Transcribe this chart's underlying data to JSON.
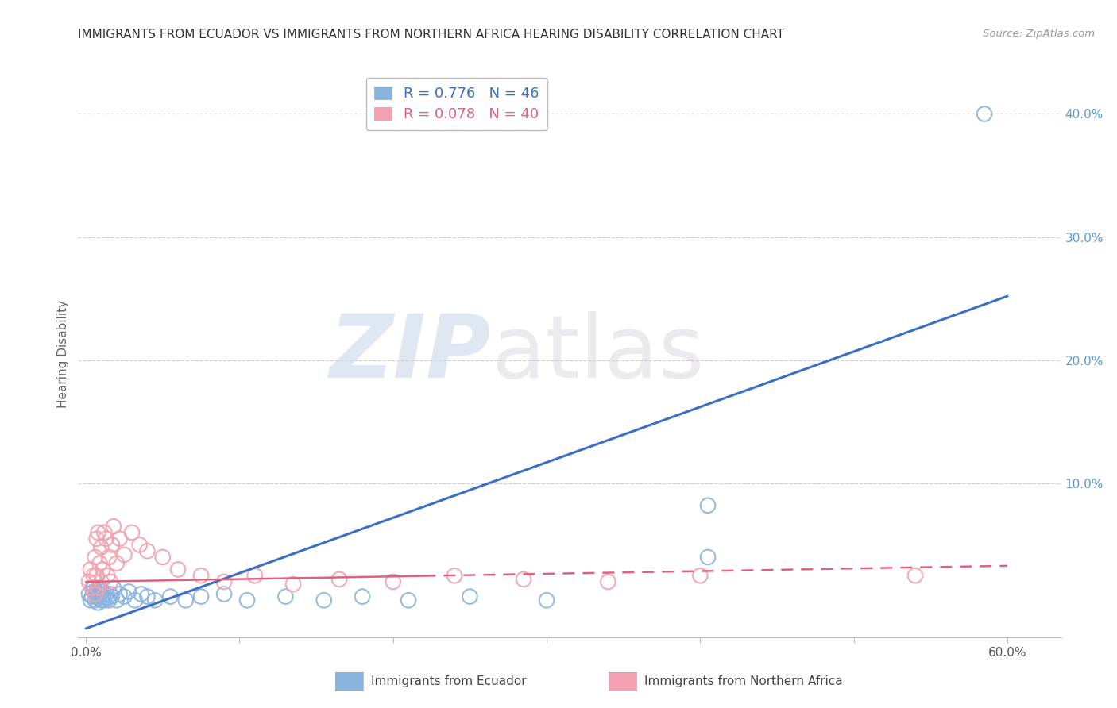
{
  "title": "IMMIGRANTS FROM ECUADOR VS IMMIGRANTS FROM NORTHERN AFRICA HEARING DISABILITY CORRELATION CHART",
  "source": "Source: ZipAtlas.com",
  "ylabel": "Hearing Disability",
  "watermark": "ZIPatlas",
  "legend_label1": "Immigrants from Ecuador",
  "legend_label2": "Immigrants from Northern Africa",
  "R1": 0.776,
  "N1": 46,
  "R2": 0.078,
  "N2": 40,
  "color1": "#8ab4e0",
  "color2": "#f4a0b0",
  "color1_line": "#3a6fc4",
  "color2_line": "#e06080",
  "regression_line1_x": [
    0.0,
    0.6
  ],
  "regression_line1_y": [
    -0.018,
    0.252
  ],
  "regression_line2_x": [
    0.0,
    0.6
  ],
  "regression_line2_y": [
    0.02,
    0.033
  ],
  "yticks": [
    0.0,
    0.1,
    0.2,
    0.3,
    0.4
  ],
  "ytick_labels": [
    "",
    "10.0%",
    "20.0%",
    "30.0%",
    "40.0%"
  ],
  "xticks": [
    0.0,
    0.1,
    0.2,
    0.3,
    0.4,
    0.5,
    0.6
  ],
  "xlim": [
    -0.005,
    0.635
  ],
  "ylim": [
    -0.025,
    0.435
  ],
  "ecuador_x": [
    0.002,
    0.003,
    0.004,
    0.005,
    0.005,
    0.006,
    0.006,
    0.007,
    0.007,
    0.008,
    0.008,
    0.009,
    0.009,
    0.01,
    0.01,
    0.011,
    0.011,
    0.012,
    0.013,
    0.014,
    0.015,
    0.016,
    0.017,
    0.018,
    0.02,
    0.022,
    0.025,
    0.028,
    0.032,
    0.036,
    0.04,
    0.045,
    0.055,
    0.065,
    0.075,
    0.09,
    0.105,
    0.13,
    0.155,
    0.18,
    0.21,
    0.25,
    0.3,
    0.405,
    0.405,
    0.585
  ],
  "ecuador_y": [
    0.01,
    0.005,
    0.008,
    0.012,
    0.015,
    0.005,
    0.01,
    0.008,
    0.012,
    0.003,
    0.007,
    0.01,
    0.015,
    0.005,
    0.01,
    0.008,
    0.012,
    0.005,
    0.01,
    0.007,
    0.005,
    0.01,
    0.008,
    0.015,
    0.005,
    0.01,
    0.008,
    0.012,
    0.005,
    0.01,
    0.008,
    0.005,
    0.008,
    0.005,
    0.008,
    0.01,
    0.005,
    0.008,
    0.005,
    0.008,
    0.005,
    0.008,
    0.005,
    0.082,
    0.04,
    0.4
  ],
  "n_africa_x": [
    0.002,
    0.003,
    0.004,
    0.005,
    0.006,
    0.006,
    0.007,
    0.007,
    0.008,
    0.008,
    0.009,
    0.01,
    0.01,
    0.011,
    0.012,
    0.013,
    0.014,
    0.015,
    0.016,
    0.017,
    0.018,
    0.02,
    0.022,
    0.025,
    0.03,
    0.035,
    0.04,
    0.05,
    0.06,
    0.075,
    0.09,
    0.11,
    0.135,
    0.165,
    0.2,
    0.24,
    0.285,
    0.34,
    0.4,
    0.54
  ],
  "n_africa_y": [
    0.02,
    0.03,
    0.015,
    0.025,
    0.04,
    0.01,
    0.055,
    0.025,
    0.06,
    0.015,
    0.035,
    0.02,
    0.048,
    0.03,
    0.06,
    0.055,
    0.025,
    0.04,
    0.02,
    0.05,
    0.065,
    0.035,
    0.055,
    0.042,
    0.06,
    0.05,
    0.045,
    0.04,
    0.03,
    0.025,
    0.02,
    0.025,
    0.018,
    0.022,
    0.02,
    0.025,
    0.022,
    0.02,
    0.025,
    0.025
  ]
}
